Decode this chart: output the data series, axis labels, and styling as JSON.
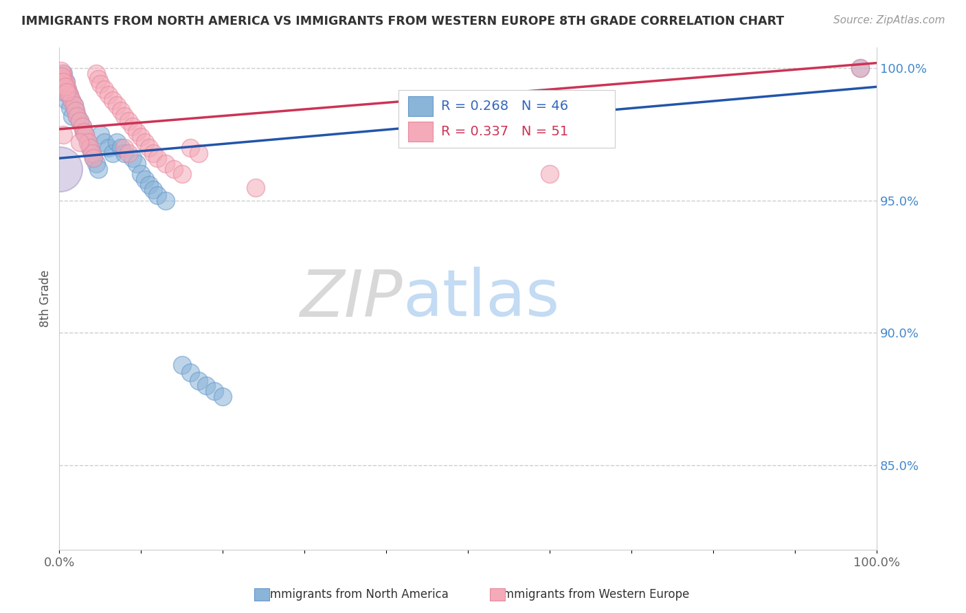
{
  "title": "IMMIGRANTS FROM NORTH AMERICA VS IMMIGRANTS FROM WESTERN EUROPE 8TH GRADE CORRELATION CHART",
  "source": "Source: ZipAtlas.com",
  "ylabel": "8th Grade",
  "xlim": [
    0.0,
    1.0
  ],
  "ylim": [
    0.818,
    1.008
  ],
  "yticks": [
    0.85,
    0.9,
    0.95,
    1.0
  ],
  "ytick_labels": [
    "85.0%",
    "90.0%",
    "95.0%",
    "100.0%"
  ],
  "legend_blue_label": "Immigrants from North America",
  "legend_pink_label": "Immigrants from Western Europe",
  "R_blue": 0.268,
  "N_blue": 46,
  "R_pink": 0.337,
  "N_pink": 51,
  "blue_color": "#8ab4d8",
  "pink_color": "#f4aab8",
  "trendline_blue": "#2255AA",
  "trendline_pink": "#CC3355",
  "background_color": "#FFFFFF",
  "watermark_zip": "ZIP",
  "watermark_atlas": "atlas",
  "grid_color": "#CCCCCC",
  "blue_x": [
    0.005,
    0.008,
    0.01,
    0.012,
    0.015,
    0.018,
    0.02,
    0.022,
    0.025,
    0.028,
    0.03,
    0.032,
    0.035,
    0.038,
    0.04,
    0.042,
    0.045,
    0.048,
    0.05,
    0.055,
    0.06,
    0.065,
    0.07,
    0.075,
    0.08,
    0.09,
    0.095,
    0.1,
    0.105,
    0.11,
    0.115,
    0.12,
    0.13,
    0.002,
    0.003,
    0.006,
    0.009,
    0.013,
    0.016,
    0.15,
    0.16,
    0.17,
    0.18,
    0.19,
    0.2,
    0.98
  ],
  "blue_y": [
    0.998,
    0.995,
    0.992,
    0.99,
    0.988,
    0.986,
    0.984,
    0.982,
    0.98,
    0.978,
    0.976,
    0.975,
    0.972,
    0.97,
    0.968,
    0.966,
    0.964,
    0.962,
    0.975,
    0.972,
    0.97,
    0.968,
    0.972,
    0.97,
    0.968,
    0.966,
    0.964,
    0.96,
    0.958,
    0.956,
    0.954,
    0.952,
    0.95,
    0.997,
    0.994,
    0.991,
    0.988,
    0.985,
    0.982,
    0.888,
    0.885,
    0.882,
    0.88,
    0.878,
    0.876,
    1.0
  ],
  "pink_x": [
    0.004,
    0.006,
    0.008,
    0.01,
    0.012,
    0.015,
    0.018,
    0.02,
    0.022,
    0.025,
    0.028,
    0.03,
    0.032,
    0.035,
    0.038,
    0.04,
    0.042,
    0.045,
    0.048,
    0.05,
    0.055,
    0.06,
    0.065,
    0.07,
    0.075,
    0.08,
    0.085,
    0.09,
    0.095,
    0.1,
    0.105,
    0.11,
    0.115,
    0.12,
    0.002,
    0.003,
    0.005,
    0.007,
    0.009,
    0.13,
    0.14,
    0.15,
    0.16,
    0.17,
    0.005,
    0.025,
    0.08,
    0.085,
    0.24,
    0.6,
    0.98
  ],
  "pink_y": [
    0.998,
    0.996,
    0.994,
    0.992,
    0.99,
    0.988,
    0.986,
    0.984,
    0.982,
    0.98,
    0.978,
    0.976,
    0.975,
    0.972,
    0.97,
    0.968,
    0.966,
    0.998,
    0.996,
    0.994,
    0.992,
    0.99,
    0.988,
    0.986,
    0.984,
    0.982,
    0.98,
    0.978,
    0.976,
    0.974,
    0.972,
    0.97,
    0.968,
    0.966,
    0.999,
    0.997,
    0.995,
    0.993,
    0.991,
    0.964,
    0.962,
    0.96,
    0.97,
    0.968,
    0.975,
    0.972,
    0.97,
    0.968,
    0.955,
    0.96,
    1.0
  ],
  "blue_line_x0": 0.0,
  "blue_line_y0": 0.966,
  "blue_line_x1": 1.0,
  "blue_line_y1": 0.993,
  "pink_line_x0": 0.0,
  "pink_line_y0": 0.977,
  "pink_line_x1": 1.0,
  "pink_line_y1": 1.002
}
